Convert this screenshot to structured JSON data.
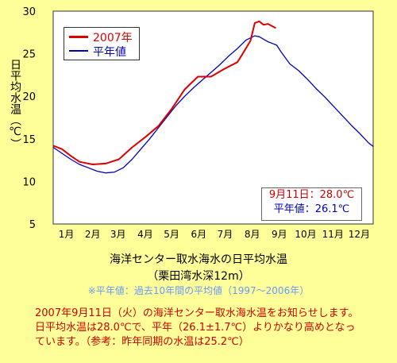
{
  "chart_data": {
    "type": "line",
    "ylabel": "日平均水温（℃）",
    "ylim": [
      5,
      30
    ],
    "yticks": [
      5,
      10,
      15,
      20,
      25,
      30
    ],
    "xlim": [
      0,
      365
    ],
    "month_labels": [
      "1月",
      "2月",
      "3月",
      "4月",
      "5月",
      "6月",
      "7月",
      "8月",
      "9月",
      "10月",
      "11月",
      "12月"
    ],
    "month_label_days": [
      15,
      45,
      74,
      105,
      135,
      166,
      196,
      227,
      258,
      288,
      319,
      349
    ],
    "grid": false,
    "legend_position": "top-left",
    "series": [
      {
        "name": "2007年",
        "color": "#dd0000",
        "x": [
          0,
          10,
          20,
          30,
          45,
          60,
          75,
          90,
          105,
          120,
          135,
          150,
          165,
          180,
          195,
          210,
          215,
          225,
          230,
          235,
          240,
          245,
          254
        ],
        "y": [
          14.2,
          13.8,
          13.0,
          12.3,
          12.0,
          12.1,
          12.6,
          14.0,
          15.2,
          16.5,
          18.5,
          20.8,
          22.3,
          22.3,
          23.2,
          24.0,
          24.8,
          26.5,
          28.6,
          28.8,
          28.4,
          28.5,
          28.0
        ]
      },
      {
        "name": "平年値",
        "color": "#0000bb",
        "x": [
          0,
          10,
          20,
          30,
          40,
          50,
          60,
          70,
          80,
          90,
          100,
          110,
          120,
          130,
          140,
          150,
          160,
          170,
          180,
          190,
          200,
          210,
          220,
          230,
          235,
          240,
          245,
          250,
          255,
          260,
          270,
          280,
          290,
          300,
          310,
          320,
          330,
          340,
          350,
          360,
          365
        ],
        "y": [
          14.0,
          13.3,
          12.6,
          12.0,
          11.6,
          11.2,
          11.0,
          11.1,
          11.6,
          12.6,
          13.8,
          15.0,
          16.3,
          17.6,
          18.9,
          20.0,
          21.0,
          21.9,
          22.8,
          23.7,
          24.7,
          25.6,
          26.6,
          27.1,
          27.0,
          26.7,
          26.4,
          26.2,
          26.0,
          25.2,
          23.8,
          23.0,
          22.0,
          20.9,
          19.9,
          18.8,
          17.7,
          16.6,
          15.6,
          14.5,
          14.1
        ]
      }
    ]
  },
  "annotation": {
    "line1": "9月11日：28.0℃",
    "line2": "平年値：26.1℃"
  },
  "caption": {
    "title": "海洋センター取水海水の日平均水温",
    "subtitle": "（栗田湾水深12m）",
    "note": "※平年値：過去10年間の平均値（1997～2006年）"
  },
  "message": {
    "line1": "2007年9月11日（火）の海洋センター取水海水温をお知らせします。",
    "line2": "日平均水温は28.0℃で、平年（26.1±1.7℃）よりかなり高めとなっ",
    "line3": "ています。（参考：昨年同期の水温は25.2℃）"
  },
  "colors": {
    "background": "#ffff99",
    "plot_background": "#ffffff",
    "series_2007": "#dd0000",
    "series_normal": "#0000bb",
    "message_text": "#cc0000",
    "note_text": "#6699ff"
  }
}
